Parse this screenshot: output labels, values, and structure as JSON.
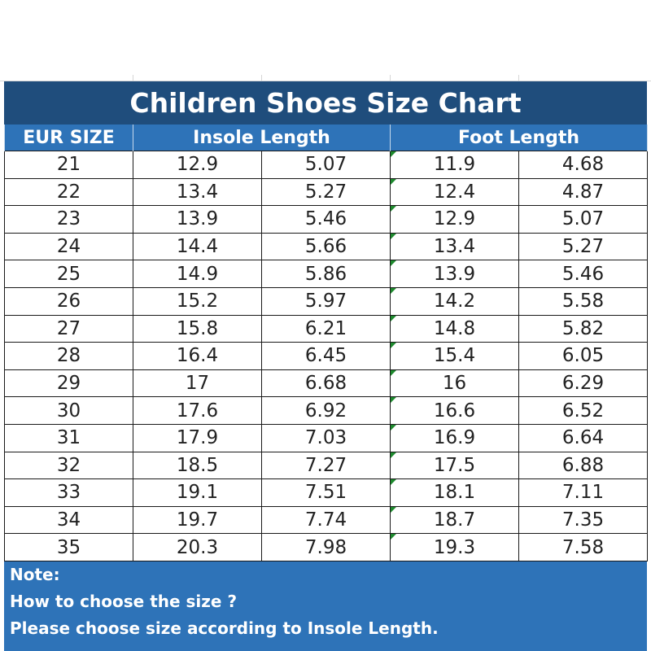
{
  "title": "Children Shoes Size Chart",
  "headers": {
    "eur_size": "EUR SIZE",
    "insole_length": "Insole Length",
    "foot_length": "Foot Length"
  },
  "rows": [
    [
      "21",
      "12.9",
      "5.07",
      "11.9",
      "4.68"
    ],
    [
      "22",
      "13.4",
      "5.27",
      "12.4",
      "4.87"
    ],
    [
      "23",
      "13.9",
      "5.46",
      "12.9",
      "5.07"
    ],
    [
      "24",
      "14.4",
      "5.66",
      "13.4",
      "5.27"
    ],
    [
      "25",
      "14.9",
      "5.86",
      "13.9",
      "5.46"
    ],
    [
      "26",
      "15.2",
      "5.97",
      "14.2",
      "5.58"
    ],
    [
      "27",
      "15.8",
      "6.21",
      "14.8",
      "5.82"
    ],
    [
      "28",
      "16.4",
      "6.45",
      "15.4",
      "6.05"
    ],
    [
      "29",
      "17",
      "6.68",
      "16",
      "6.29"
    ],
    [
      "30",
      "17.6",
      "6.92",
      "16.6",
      "6.52"
    ],
    [
      "31",
      "17.9",
      "7.03",
      "16.9",
      "6.64"
    ],
    [
      "32",
      "18.5",
      "7.27",
      "17.5",
      "6.88"
    ],
    [
      "33",
      "19.1",
      "7.51",
      "18.1",
      "7.11"
    ],
    [
      "34",
      "19.7",
      "7.74",
      "18.7",
      "7.35"
    ],
    [
      "35",
      "20.3",
      "7.98",
      "19.3",
      "7.58"
    ]
  ],
  "note": {
    "label": "Note:",
    "line1": "How to choose the size ?",
    "line2": "Please choose size according to Insole Length."
  },
  "colors": {
    "title_bg": "#1f4d7c",
    "header_bg": "#2e73b8",
    "cell_marker": "#1e8a2e"
  }
}
